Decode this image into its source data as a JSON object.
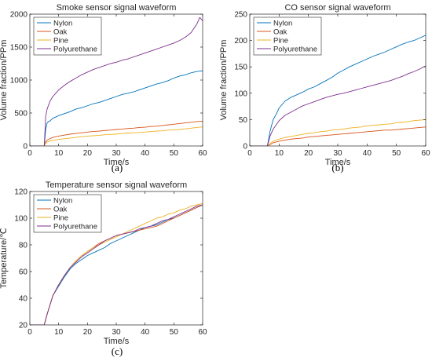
{
  "colors": {
    "nylon": "#0072BD",
    "oak": "#D95319",
    "pine": "#EDB120",
    "polyurethane": "#7E2F8E",
    "axis": "#262626",
    "grid": "#ffffff"
  },
  "chart_data": [
    {
      "panel": "(a)",
      "type": "line",
      "title": "Smoke sensor signal waveform",
      "xlabel": "Time/s",
      "ylabel": "Volume fraction/PPm",
      "xlim": [
        0,
        60
      ],
      "ylim": [
        0,
        2000
      ],
      "xticks": [
        0,
        10,
        20,
        30,
        40,
        50,
        60
      ],
      "yticks": [
        0,
        500,
        1000,
        1500,
        2000
      ],
      "grid": false,
      "legend": "top-left",
      "series": [
        {
          "name": "Nylon",
          "color_key": "nylon",
          "x": [
            0,
            5,
            5.5,
            6,
            6.5,
            7,
            8,
            9,
            10,
            12,
            14,
            16,
            18,
            20,
            22,
            24,
            26,
            28,
            30,
            32,
            34,
            36,
            38,
            40,
            42,
            44,
            46,
            48,
            50,
            52,
            54,
            56,
            58,
            60
          ],
          "y": [
            0,
            0,
            250,
            350,
            370,
            380,
            420,
            440,
            460,
            490,
            520,
            560,
            580,
            610,
            640,
            660,
            690,
            720,
            750,
            780,
            800,
            820,
            850,
            880,
            910,
            940,
            960,
            990,
            1030,
            1060,
            1080,
            1110,
            1130,
            1140
          ]
        },
        {
          "name": "Oak",
          "color_key": "oak",
          "x": [
            0,
            5,
            5.5,
            6,
            7,
            8,
            10,
            12,
            14,
            16,
            18,
            20,
            22,
            24,
            26,
            28,
            30,
            32,
            34,
            36,
            38,
            40,
            42,
            44,
            46,
            48,
            50,
            52,
            54,
            56,
            58,
            60
          ],
          "y": [
            0,
            0,
            60,
            90,
            110,
            130,
            150,
            165,
            180,
            190,
            200,
            210,
            220,
            225,
            235,
            240,
            250,
            255,
            265,
            270,
            280,
            285,
            295,
            300,
            310,
            320,
            330,
            340,
            350,
            360,
            370,
            375
          ]
        },
        {
          "name": "Pine",
          "color_key": "pine",
          "x": [
            0,
            5,
            5.5,
            6,
            7,
            8,
            10,
            12,
            14,
            16,
            18,
            20,
            22,
            24,
            26,
            28,
            30,
            32,
            34,
            36,
            38,
            40,
            42,
            44,
            46,
            48,
            50,
            52,
            54,
            56,
            58,
            60
          ],
          "y": [
            0,
            0,
            40,
            60,
            75,
            85,
            100,
            110,
            120,
            130,
            140,
            150,
            155,
            160,
            170,
            175,
            180,
            190,
            195,
            200,
            205,
            210,
            220,
            225,
            230,
            240,
            245,
            250,
            260,
            270,
            280,
            290
          ]
        },
        {
          "name": "Polyurethane",
          "color_key": "polyurethane",
          "x": [
            0,
            5,
            5.5,
            6,
            6.5,
            7,
            8,
            9,
            10,
            12,
            14,
            16,
            18,
            20,
            22,
            24,
            26,
            28,
            30,
            32,
            34,
            36,
            38,
            40,
            42,
            44,
            46,
            48,
            50,
            52,
            54,
            56,
            58,
            59,
            60
          ],
          "y": [
            0,
            0,
            450,
            560,
            620,
            680,
            750,
            800,
            850,
            920,
            980,
            1030,
            1080,
            1120,
            1160,
            1190,
            1220,
            1250,
            1270,
            1300,
            1320,
            1350,
            1380,
            1410,
            1440,
            1470,
            1500,
            1530,
            1560,
            1600,
            1650,
            1720,
            1850,
            1950,
            1900
          ]
        }
      ]
    },
    {
      "panel": "(b)",
      "type": "line",
      "title": "CO sensor signal waveform",
      "xlabel": "Time/s",
      "ylabel": "Volume fraction/PPm",
      "xlim": [
        0,
        60
      ],
      "ylim": [
        0,
        250
      ],
      "xticks": [
        0,
        10,
        20,
        30,
        40,
        50,
        60
      ],
      "yticks": [
        0,
        50,
        100,
        150,
        200,
        250
      ],
      "grid": false,
      "legend": "top-left",
      "series": [
        {
          "name": "Nylon",
          "color_key": "nylon",
          "x": [
            0,
            6,
            7,
            8,
            9,
            10,
            12,
            14,
            16,
            18,
            20,
            22,
            24,
            26,
            28,
            30,
            32,
            34,
            36,
            38,
            40,
            42,
            44,
            46,
            48,
            50,
            52,
            54,
            56,
            58,
            60
          ],
          "y": [
            0,
            0,
            30,
            50,
            60,
            72,
            85,
            92,
            97,
            102,
            108,
            112,
            118,
            124,
            130,
            138,
            144,
            150,
            155,
            160,
            165,
            170,
            174,
            178,
            183,
            188,
            193,
            197,
            200,
            205,
            210
          ]
        },
        {
          "name": "Oak",
          "color_key": "oak",
          "x": [
            0,
            6,
            7,
            8,
            10,
            12,
            14,
            16,
            18,
            20,
            22,
            24,
            26,
            28,
            30,
            32,
            34,
            36,
            38,
            40,
            42,
            44,
            46,
            48,
            50,
            52,
            54,
            56,
            58,
            60
          ],
          "y": [
            0,
            0,
            3,
            6,
            9,
            11,
            13,
            14,
            15,
            17,
            18,
            19,
            20,
            21,
            22,
            23,
            24,
            25,
            26,
            27,
            28,
            29,
            30,
            30,
            31,
            32,
            33,
            34,
            35,
            36
          ]
        },
        {
          "name": "Pine",
          "color_key": "pine",
          "x": [
            0,
            6,
            7,
            8,
            10,
            12,
            14,
            16,
            18,
            20,
            22,
            24,
            26,
            28,
            30,
            32,
            34,
            36,
            38,
            40,
            42,
            44,
            46,
            48,
            50,
            52,
            54,
            56,
            58,
            60
          ],
          "y": [
            0,
            0,
            5,
            9,
            13,
            16,
            18,
            20,
            22,
            24,
            25,
            27,
            28,
            30,
            31,
            32,
            34,
            35,
            36,
            38,
            39,
            40,
            41,
            42,
            44,
            45,
            46,
            48,
            49,
            50
          ]
        },
        {
          "name": "Polyurethane",
          "color_key": "polyurethane",
          "x": [
            0,
            6,
            7,
            8,
            9,
            10,
            12,
            14,
            16,
            18,
            20,
            22,
            24,
            26,
            28,
            30,
            32,
            34,
            36,
            38,
            40,
            42,
            44,
            46,
            48,
            50,
            52,
            54,
            56,
            58,
            60
          ],
          "y": [
            0,
            0,
            20,
            32,
            40,
            48,
            58,
            64,
            70,
            76,
            80,
            84,
            88,
            92,
            95,
            98,
            100,
            103,
            106,
            109,
            112,
            115,
            118,
            121,
            124,
            128,
            132,
            137,
            141,
            146,
            152
          ]
        }
      ]
    },
    {
      "panel": "(c)",
      "type": "line",
      "title": "Temperature sensor signal waveform",
      "xlabel": "Time/s",
      "ylabel": "Temperature/℃",
      "xlim": [
        0,
        60
      ],
      "ylim": [
        20,
        120
      ],
      "xticks": [
        0,
        10,
        20,
        30,
        40,
        50,
        60
      ],
      "yticks": [
        20,
        40,
        60,
        80,
        100,
        120
      ],
      "grid": false,
      "legend": "top-left",
      "series": [
        {
          "name": "Nylon",
          "color_key": "nylon",
          "x": [
            0,
            5,
            6,
            8,
            10,
            12,
            14,
            16,
            18,
            20,
            22,
            24,
            26,
            28,
            30,
            32,
            34,
            36,
            38,
            40,
            42,
            44,
            46,
            48,
            50,
            52,
            54,
            56,
            58,
            60
          ],
          "y": [
            20,
            20,
            28,
            42,
            49,
            56,
            62,
            66,
            69,
            72,
            74,
            76,
            78,
            81,
            83,
            85,
            87,
            89,
            91,
            93,
            94,
            95,
            97,
            99,
            100,
            102,
            104,
            106,
            108,
            110
          ]
        },
        {
          "name": "Oak",
          "color_key": "oak",
          "x": [
            0,
            5,
            6,
            8,
            10,
            12,
            14,
            16,
            18,
            20,
            22,
            24,
            26,
            28,
            30,
            32,
            34,
            36,
            38,
            40,
            42,
            44,
            46,
            48,
            50,
            52,
            54,
            56,
            58,
            60
          ],
          "y": [
            20,
            20,
            28,
            42,
            50,
            57,
            63,
            68,
            72,
            75,
            78,
            81,
            83,
            85,
            87,
            88,
            89,
            90,
            91,
            92,
            93,
            94,
            96,
            98,
            100,
            102,
            104,
            106,
            108,
            110
          ]
        },
        {
          "name": "Pine",
          "color_key": "pine",
          "x": [
            0,
            5,
            6,
            8,
            10,
            12,
            14,
            16,
            18,
            20,
            22,
            24,
            26,
            28,
            30,
            32,
            34,
            36,
            38,
            40,
            42,
            44,
            46,
            48,
            50,
            52,
            54,
            56,
            58,
            60
          ],
          "y": [
            20,
            20,
            28,
            42,
            50,
            57,
            63,
            68,
            72,
            75,
            78,
            80,
            82,
            84,
            86,
            88,
            90,
            92,
            94,
            96,
            98,
            100,
            101,
            103,
            104,
            106,
            107,
            109,
            110,
            111
          ]
        },
        {
          "name": "Polyurethane",
          "color_key": "polyurethane",
          "x": [
            0,
            5,
            6,
            8,
            10,
            12,
            14,
            16,
            18,
            20,
            22,
            24,
            26,
            28,
            30,
            32,
            34,
            36,
            38,
            40,
            42,
            44,
            46,
            48,
            50,
            52,
            54,
            56,
            58,
            60
          ],
          "y": [
            20,
            20,
            28,
            42,
            50,
            57,
            63,
            67,
            71,
            74,
            77,
            80,
            83,
            85,
            87,
            88,
            89,
            90,
            92,
            93,
            94,
            96,
            98,
            99,
            101,
            103,
            105,
            107,
            109,
            110
          ]
        }
      ]
    }
  ]
}
